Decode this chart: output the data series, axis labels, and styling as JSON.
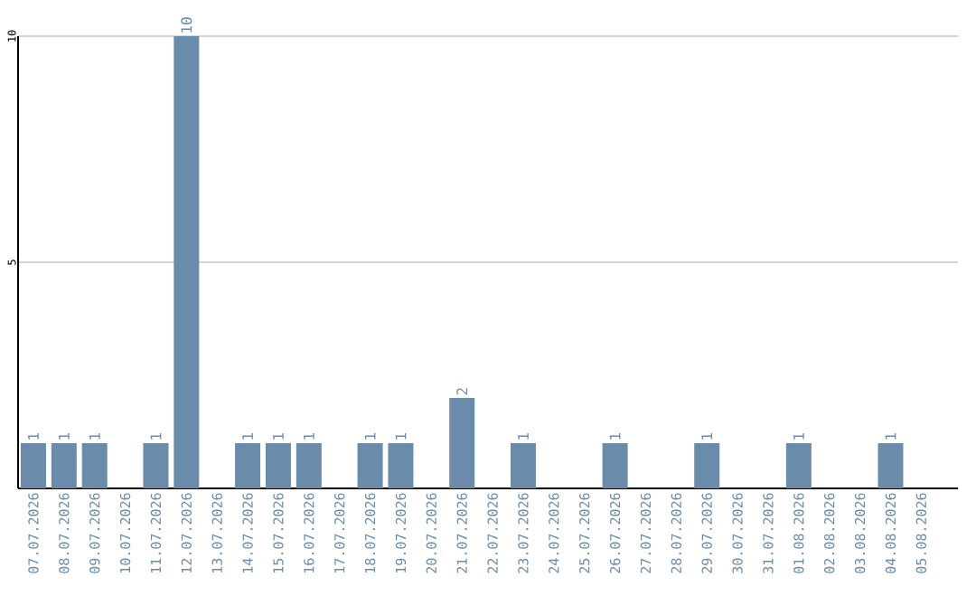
{
  "chart_data": {
    "type": "bar",
    "categories": [
      "07.07.2026",
      "08.07.2026",
      "09.07.2026",
      "10.07.2026",
      "11.07.2026",
      "12.07.2026",
      "13.07.2026",
      "14.07.2026",
      "15.07.2026",
      "16.07.2026",
      "17.07.2026",
      "18.07.2026",
      "19.07.2026",
      "20.07.2026",
      "21.07.2026",
      "22.07.2026",
      "23.07.2026",
      "24.07.2026",
      "25.07.2026",
      "26.07.2026",
      "27.07.2026",
      "28.07.2026",
      "29.07.2026",
      "30.07.2026",
      "31.07.2026",
      "01.08.2026",
      "02.08.2026",
      "03.08.2026",
      "04.08.2026",
      "05.08.2026"
    ],
    "values": [
      1,
      1,
      1,
      null,
      1,
      10,
      null,
      1,
      1,
      1,
      null,
      1,
      1,
      null,
      2,
      null,
      1,
      null,
      null,
      1,
      null,
      null,
      1,
      null,
      null,
      1,
      null,
      null,
      1,
      null
    ],
    "color": "#6a8caa",
    "ylim": [
      0,
      10
    ],
    "yticks": [
      5,
      10
    ],
    "grid": "y",
    "data_labels": true
  }
}
